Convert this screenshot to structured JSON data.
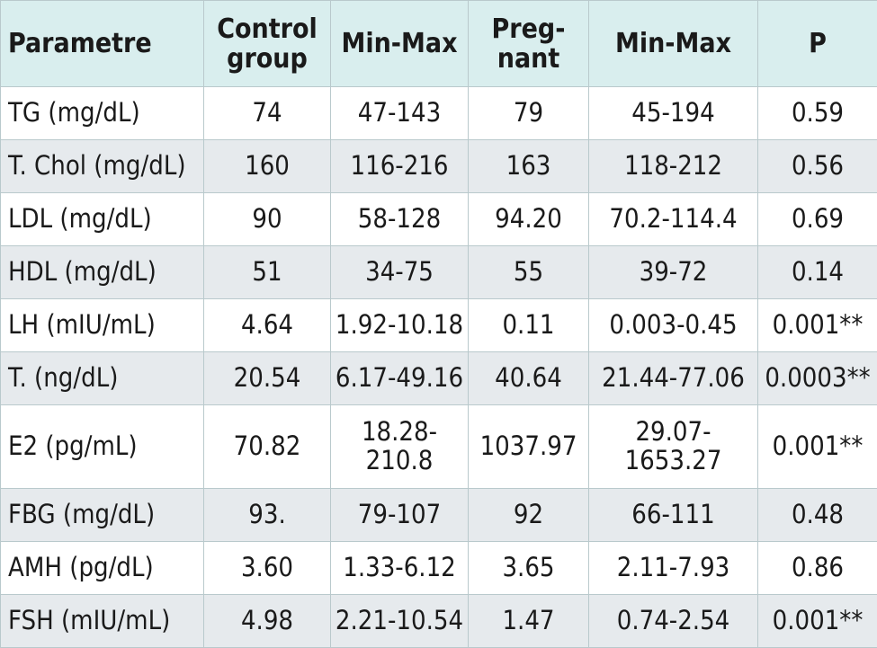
{
  "table": {
    "headers": [
      {
        "id": "param",
        "label": "Parametre"
      },
      {
        "id": "control",
        "label": "Control group"
      },
      {
        "id": "control_range",
        "label": "Min-Max"
      },
      {
        "id": "pregnant",
        "label": "Preg-nant"
      },
      {
        "id": "pregnant_range",
        "label": "Min-Max"
      },
      {
        "id": "p",
        "label": "P"
      }
    ],
    "rows": [
      [
        "TG (mg/dL)",
        "74",
        "47-143",
        "79",
        "45-194",
        "0.59"
      ],
      [
        "T. Chol (mg/dL)",
        "160",
        "116-216",
        "163",
        "118-212",
        "0.56"
      ],
      [
        "LDL (mg/dL)",
        "90",
        "58-128",
        "94.20",
        "70.2-114.4",
        "0.69"
      ],
      [
        "HDL (mg/dL)",
        "51",
        "34-75",
        "55",
        "39-72",
        "0.14"
      ],
      [
        "LH (mIU/mL)",
        "4.64",
        "1.92-10.18",
        "0.11",
        "0.003-0.45",
        "0.001**"
      ],
      [
        "T. (ng/dL)",
        "20.54",
        "6.17-49.16",
        "40.64",
        "21.44-77.06",
        "0.0003**"
      ],
      [
        "E2 (pg/mL)",
        "70.82",
        "18.28-210.8",
        "1037.97",
        "29.07-1653.27",
        "0.001**"
      ],
      [
        "FBG (mg/dL)",
        "93.",
        "79-107",
        "92",
        "66-111",
        "0.48"
      ],
      [
        "AMH (pg/dL)",
        "3.60",
        "1.33-6.12",
        "3.65",
        "2.11-7.93",
        "0.86"
      ],
      [
        "FSH (mIU/mL)",
        "4.98",
        "2.21-10.54",
        "1.47",
        "0.74-2.54",
        "0.001**"
      ]
    ],
    "colors": {
      "header_bg": "#d9eeee",
      "row_shade_bg": "#e6eaed",
      "row_plain_bg": "#ffffff",
      "border": "#b9c9cc"
    }
  }
}
